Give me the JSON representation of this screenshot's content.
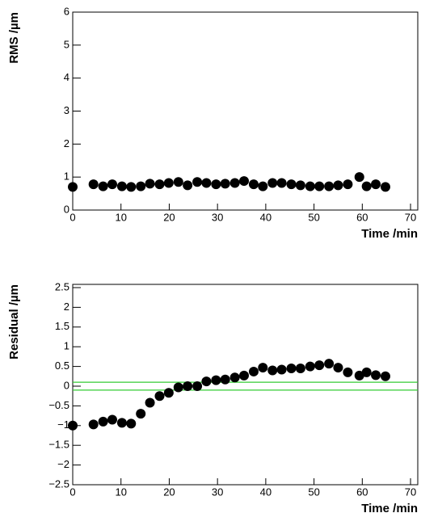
{
  "chart_data": [
    {
      "type": "scatter",
      "ylabel": "RMS /µm",
      "xlabel": "Time /min",
      "x": [
        0,
        4.3,
        6.3,
        8.2,
        10.2,
        12.1,
        14.1,
        16.0,
        18.0,
        19.9,
        21.9,
        23.8,
        25.8,
        27.7,
        29.7,
        31.6,
        33.6,
        35.5,
        37.5,
        39.4,
        41.4,
        43.3,
        45.3,
        47.2,
        49.2,
        51.1,
        53.1,
        55.0,
        57.0,
        59.4,
        60.9,
        62.8,
        64.8
      ],
      "values": [
        0.7,
        0.78,
        0.72,
        0.78,
        0.72,
        0.7,
        0.72,
        0.8,
        0.78,
        0.82,
        0.85,
        0.75,
        0.85,
        0.82,
        0.78,
        0.8,
        0.82,
        0.88,
        0.78,
        0.72,
        0.82,
        0.82,
        0.78,
        0.75,
        0.72,
        0.72,
        0.72,
        0.75,
        0.78,
        1.0,
        0.72,
        0.78,
        0.7
      ],
      "color": "#000000",
      "xlim": [
        0,
        71.5
      ],
      "ylim": [
        0,
        6
      ],
      "xticks": [
        0,
        10,
        20,
        30,
        40,
        50,
        60,
        70
      ],
      "yticks": [
        0,
        1,
        2,
        3,
        4,
        5,
        6
      ]
    },
    {
      "type": "scatter",
      "ylabel": "Residual /µm",
      "xlabel": "Time /min",
      "x": [
        0,
        4.3,
        6.3,
        8.2,
        10.2,
        12.1,
        14.1,
        16.0,
        18.0,
        19.9,
        21.9,
        23.8,
        25.8,
        27.7,
        29.7,
        31.6,
        33.6,
        35.5,
        37.5,
        39.4,
        41.4,
        43.3,
        45.3,
        47.2,
        49.2,
        51.1,
        53.1,
        55.0,
        57.0,
        59.4,
        60.9,
        62.8,
        64.8
      ],
      "values": [
        -1.0,
        -0.97,
        -0.9,
        -0.85,
        -0.93,
        -0.95,
        -0.7,
        -0.42,
        -0.25,
        -0.17,
        -0.03,
        0.0,
        0.0,
        0.12,
        0.15,
        0.17,
        0.22,
        0.27,
        0.37,
        0.47,
        0.4,
        0.42,
        0.45,
        0.45,
        0.5,
        0.53,
        0.57,
        0.47,
        0.35,
        0.27,
        0.35,
        0.28,
        0.25
      ],
      "color": "#000000",
      "reference_lines": [
        0.1,
        -0.1
      ],
      "reference_color": "#33cc33",
      "xlim": [
        0,
        71.5
      ],
      "ylim": [
        -2.5,
        2.5
      ],
      "xticks": [
        0,
        10,
        20,
        30,
        40,
        50,
        60,
        70
      ],
      "yticks": [
        {
          "value": -2.5,
          "label": "−2.5"
        },
        {
          "value": -2,
          "label": "−2"
        },
        {
          "value": -1.5,
          "label": "−1.5"
        },
        {
          "value": -1,
          "label": "−1"
        },
        {
          "value": -0.5,
          "label": "−0.5"
        },
        0,
        0.5,
        1,
        1.5,
        2,
        2.5
      ]
    }
  ]
}
